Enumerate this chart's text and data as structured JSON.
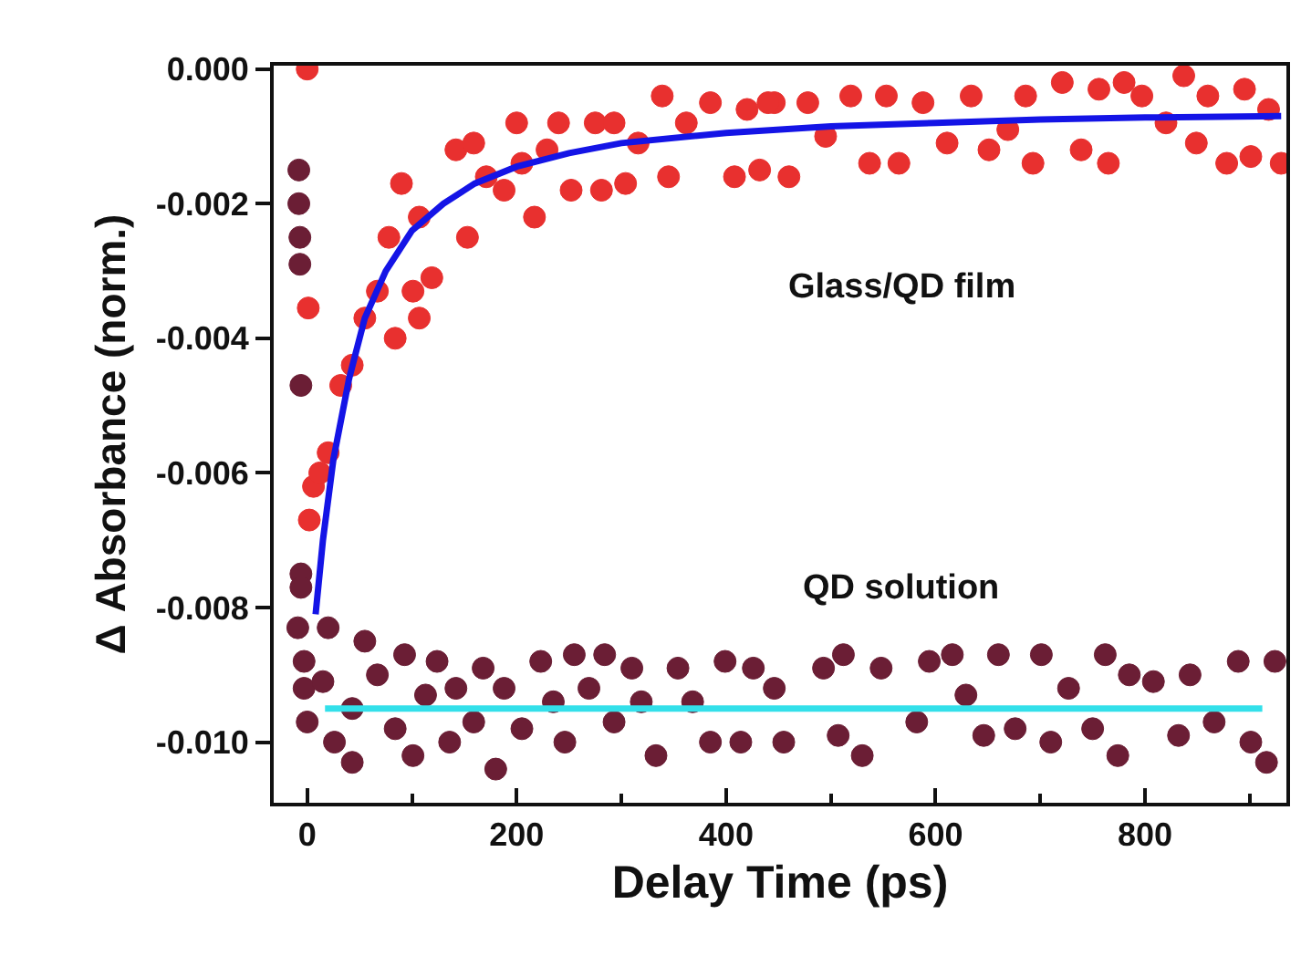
{
  "chart_data": {
    "type": "scatter",
    "xlabel": "Delay Time (ps)",
    "ylabel": "Δ Absorbance (norm.)",
    "xlim": [
      -32,
      935
    ],
    "xticks": [
      0,
      200,
      400,
      600,
      800
    ],
    "ylim": [
      -0.0109,
      5e-05
    ],
    "yticks": [
      {
        "value": 0,
        "label": "0.000"
      },
      {
        "value": -0.002,
        "label": "-0.002"
      },
      {
        "value": -0.004,
        "label": "-0.004"
      },
      {
        "value": -0.006,
        "label": "-0.006"
      },
      {
        "value": -0.008,
        "label": "-0.008"
      },
      {
        "value": -0.01,
        "label": "-0.010"
      }
    ],
    "grid": false,
    "series": [
      {
        "name": "Glass/QD film",
        "marker": "circle",
        "color": "#e8302f",
        "x": [
          0,
          1,
          2,
          6,
          12,
          20,
          32,
          43,
          55,
          67,
          84,
          78,
          90,
          107,
          101,
          107,
          119,
          142,
          153,
          159,
          171,
          188,
          200,
          205,
          217,
          229,
          240,
          252,
          275,
          281,
          293,
          304,
          316,
          339,
          345,
          362,
          385,
          408,
          420,
          432,
          446,
          440,
          460,
          478,
          495,
          519,
          537,
          553,
          565,
          588,
          611,
          634,
          651,
          669,
          686,
          693,
          721,
          739,
          756,
          765,
          780,
          797,
          820,
          837,
          849,
          860,
          878,
          895,
          901,
          918,
          930
        ],
        "values": [
          0,
          -0.00355,
          -0.0067,
          -0.0062,
          -0.006,
          -0.0057,
          -0.0047,
          -0.0044,
          -0.0037,
          -0.0033,
          -0.004,
          -0.0025,
          -0.0017,
          -0.0022,
          -0.0033,
          -0.0037,
          -0.0031,
          -0.0012,
          -0.0025,
          -0.0011,
          -0.0016,
          -0.0018,
          -0.0008,
          -0.0014,
          -0.0022,
          -0.0012,
          -0.0008,
          -0.0018,
          -0.0008,
          -0.0018,
          -0.0008,
          -0.0017,
          -0.0011,
          -0.0004,
          -0.0016,
          -0.0008,
          -0.0005,
          -0.0016,
          -0.0006,
          -0.0015,
          -0.0005,
          -0.0005,
          -0.0016,
          -0.0005,
          -0.001,
          -0.0004,
          -0.0014,
          -0.0004,
          -0.0014,
          -0.0005,
          -0.0011,
          -0.0004,
          -0.0012,
          -0.0009,
          -0.0004,
          -0.0014,
          -0.0002,
          -0.0012,
          -0.0003,
          -0.0014,
          -0.0002,
          -0.0004,
          -0.0008,
          -0.0001,
          -0.0011,
          -0.0004,
          -0.0014,
          -0.0003,
          -0.0013,
          -0.0006,
          -0.0014
        ]
      },
      {
        "name": "QD solution",
        "marker": "circle",
        "color": "#6b1e35",
        "x": [
          -8,
          -8,
          -7,
          -7,
          -6,
          -6,
          -6,
          -9,
          -3,
          -3,
          0,
          20,
          15,
          26,
          43,
          55,
          43,
          67,
          84,
          93,
          101,
          113,
          124,
          136,
          142,
          159,
          168,
          180,
          188,
          205,
          223,
          235,
          246,
          255,
          269,
          284,
          293,
          310,
          319,
          333,
          354,
          368,
          385,
          399,
          414,
          426,
          446,
          455,
          493,
          512,
          507,
          530,
          548,
          582,
          594,
          616,
          629,
          646,
          660,
          676,
          701,
          710,
          727,
          750,
          762,
          774,
          785,
          808,
          832,
          843,
          866,
          889,
          901,
          916,
          924
        ],
        "values": [
          -0.0015,
          -0.002,
          -0.0025,
          -0.0029,
          -0.0047,
          -0.0075,
          -0.0077,
          -0.0083,
          -0.0088,
          -0.0092,
          -0.0097,
          -0.0083,
          -0.0091,
          -0.01,
          -0.0103,
          -0.0085,
          -0.0095,
          -0.009,
          -0.0098,
          -0.0087,
          -0.0102,
          -0.0093,
          -0.0088,
          -0.01,
          -0.0092,
          -0.0097,
          -0.0089,
          -0.0104,
          -0.0092,
          -0.0098,
          -0.0088,
          -0.0094,
          -0.01,
          -0.0087,
          -0.0092,
          -0.0087,
          -0.0097,
          -0.0089,
          -0.0094,
          -0.0102,
          -0.0089,
          -0.0094,
          -0.01,
          -0.0088,
          -0.01,
          -0.0089,
          -0.0092,
          -0.01,
          -0.0089,
          -0.0087,
          -0.0099,
          -0.0102,
          -0.0089,
          -0.0097,
          -0.0088,
          -0.0087,
          -0.0093,
          -0.0099,
          -0.0087,
          -0.0098,
          -0.0087,
          -0.01,
          -0.0092,
          -0.0098,
          -0.0087,
          -0.0102,
          -0.009,
          -0.0091,
          -0.0099,
          -0.009,
          -0.0097,
          -0.0088,
          -0.01,
          -0.0103,
          -0.0088
        ]
      },
      {
        "type": "line",
        "marker": "none",
        "color": "#1414e6",
        "x": [
          8,
          15,
          25,
          40,
          55,
          75,
          100,
          130,
          160,
          200,
          250,
          300,
          400,
          500,
          600,
          700,
          800,
          930
        ],
        "values": [
          -0.0081,
          -0.007,
          -0.0058,
          -0.0046,
          -0.0037,
          -0.003,
          -0.0024,
          -0.002,
          -0.0017,
          -0.00145,
          -0.00125,
          -0.0011,
          -0.00095,
          -0.00085,
          -0.0008,
          -0.00075,
          -0.00072,
          -0.0007
        ]
      },
      {
        "type": "line",
        "marker": "none",
        "color": "#33e0ea",
        "x": [
          17,
          912
        ],
        "values": [
          -0.0095,
          -0.0095
        ]
      }
    ]
  }
}
